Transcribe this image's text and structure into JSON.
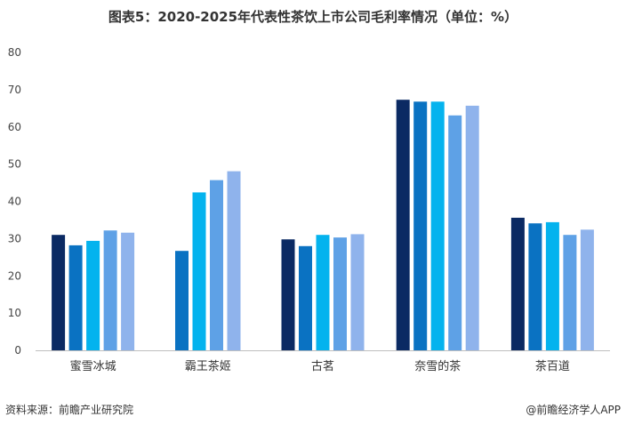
{
  "title": "图表5：2020-2025年代表性茶饮上市公司毛利率情况（单位：%）",
  "footer": {
    "source": "资料来源：前瞻产业研究院",
    "brand": "@前瞻经济学人APP"
  },
  "chart_data": {
    "type": "bar",
    "title": "图表5：2020-2025年代表性茶饮上市公司毛利率情况（单位：%）",
    "categories": [
      "蜜雪冰城",
      "霸王茶姬",
      "古茗",
      "奈雪的茶",
      "茶百道"
    ],
    "yticks": [
      "0",
      "10",
      "20",
      "30",
      "40",
      "50",
      "60",
      "70",
      "80"
    ],
    "ylim": [
      0,
      80
    ],
    "grid": false,
    "legend": "none",
    "colors": [
      "#0b2a63",
      "#0a72c2",
      "#04b3ee",
      "#5ea1e6",
      "#8fb3ec"
    ],
    "groups": [
      [
        31.0,
        28.2,
        29.4,
        32.2,
        31.6
      ],
      [
        26.7,
        42.4,
        45.7,
        48.1
      ],
      [
        29.8,
        28.0,
        31.0,
        30.3,
        31.2
      ],
      [
        67.3,
        66.8,
        66.8,
        63.1,
        65.7
      ],
      [
        35.6,
        34.1,
        34.4,
        31.0,
        32.4
      ]
    ],
    "group_color_offset": [
      0,
      1,
      0,
      0,
      0
    ]
  }
}
